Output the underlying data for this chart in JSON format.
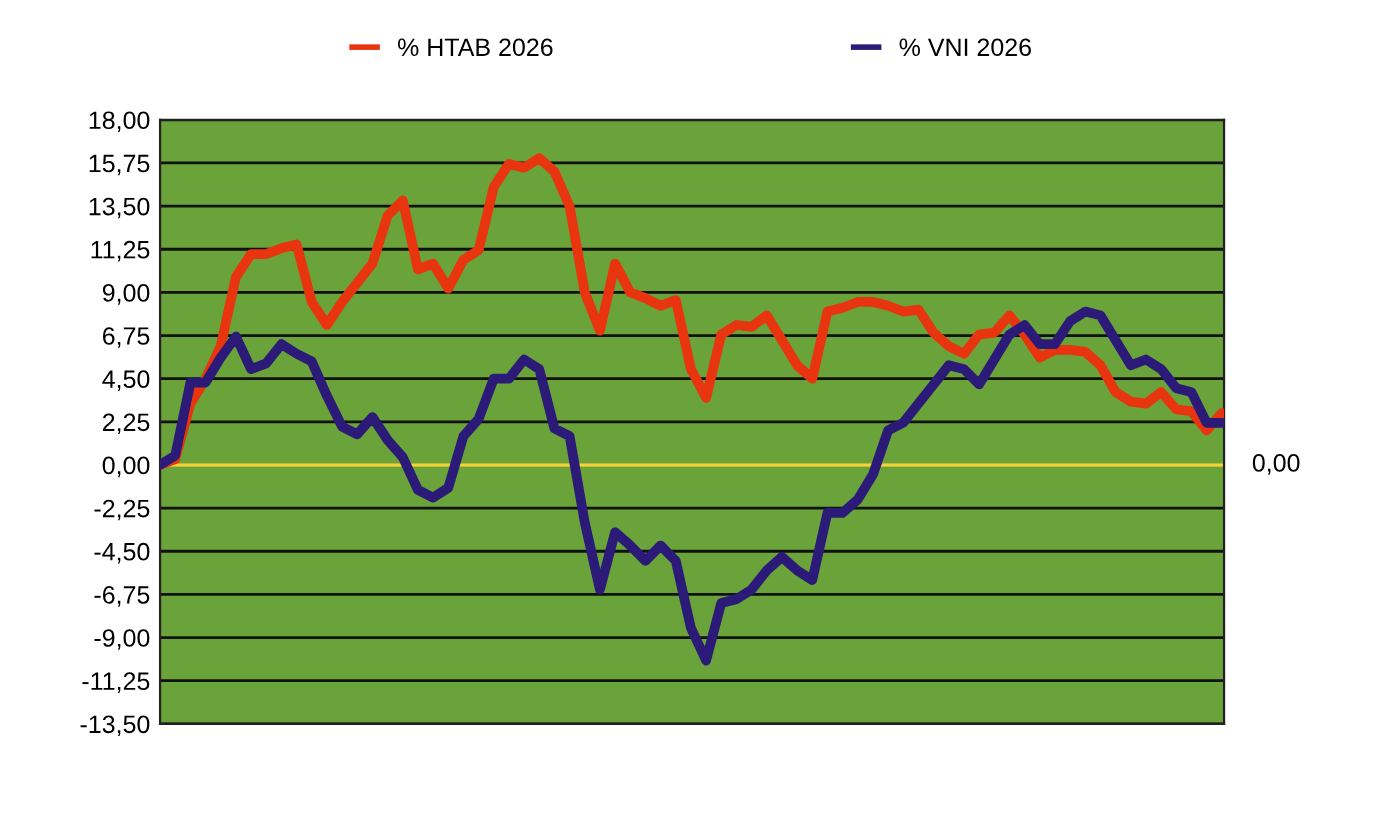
{
  "chart_data": {
    "type": "line",
    "categories": [
      null,
      null,
      null,
      null,
      null,
      null,
      null,
      null,
      null,
      null,
      null,
      null,
      null,
      null,
      null,
      null,
      null,
      null,
      null,
      null,
      null,
      null,
      null,
      null,
      null,
      null,
      null,
      null,
      null,
      null,
      null,
      null,
      null,
      null,
      null,
      null,
      null,
      null,
      null,
      null,
      null,
      null,
      null,
      null,
      null,
      null,
      null,
      null,
      null,
      null,
      null,
      null,
      null,
      null,
      null,
      null,
      null,
      null,
      null,
      null,
      null,
      null,
      null,
      null,
      null,
      null,
      null,
      null,
      null,
      null,
      null
    ],
    "series": [
      {
        "name": "% HTAB 2026",
        "color": "#e8340f",
        "values": [
          0,
          0.3,
          3.2,
          4.5,
          6.2,
          9.8,
          11,
          11,
          11.3,
          11.5,
          8.5,
          7.3,
          8.5,
          9.5,
          10.5,
          13,
          13.8,
          10.2,
          10.5,
          9.2,
          10.7,
          11.2,
          14.5,
          15.7,
          15.5,
          16,
          15.3,
          13.5,
          9,
          7,
          10.5,
          9,
          8.7,
          8.3,
          8.6,
          5,
          3.5,
          6.8,
          7.3,
          7.2,
          7.8,
          6.5,
          5.2,
          4.5,
          8,
          8.2,
          8.5,
          8.5,
          8.3,
          8,
          8.1,
          6.9,
          6.2,
          5.8,
          6.8,
          6.9,
          7.8,
          6.8,
          5.6,
          6,
          6,
          5.9,
          5.2,
          3.8,
          3.3,
          3.2,
          3.8,
          2.9,
          2.8,
          1.8,
          2.7
        ]
      },
      {
        "name": "% VNI 2026",
        "color": "#2b1a78",
        "values": [
          0,
          0.5,
          4.3,
          4.3,
          5.6,
          6.7,
          5,
          5.3,
          6.3,
          5.8,
          5.4,
          3.6,
          2,
          1.6,
          2.5,
          1.3,
          0.4,
          -1.3,
          -1.7,
          -1.2,
          1.5,
          2.4,
          4.5,
          4.5,
          5.5,
          5,
          1.9,
          1.5,
          -3,
          -6.5,
          -3.5,
          -4.2,
          -5,
          -4.2,
          -5,
          -8.5,
          -10.2,
          -7.2,
          -7,
          -6.5,
          -5.5,
          -4.8,
          -5.5,
          -6,
          -2.5,
          -2.5,
          -1.8,
          -0.5,
          1.8,
          2.2,
          3.2,
          4.2,
          5.2,
          5,
          4.2,
          5.5,
          6.8,
          7.3,
          6.3,
          6.3,
          7.5,
          8,
          7.8,
          6.5,
          5.2,
          5.5,
          5,
          4,
          3.8,
          2.2,
          2.2
        ]
      }
    ],
    "ylim": [
      -13.5,
      18
    ],
    "yticks": [
      {
        "value": 18,
        "label": "18,00"
      },
      {
        "value": 15.75,
        "label": "15,75"
      },
      {
        "value": 13.5,
        "label": "13,50"
      },
      {
        "value": 11.25,
        "label": "11,25"
      },
      {
        "value": 9,
        "label": "9,00"
      },
      {
        "value": 6.75,
        "label": "6,75"
      },
      {
        "value": 4.5,
        "label": "4,50"
      },
      {
        "value": 2.25,
        "label": "2,25"
      },
      {
        "value": 0,
        "label": "0,00"
      },
      {
        "value": -2.25,
        "label": "-2,25"
      },
      {
        "value": -4.5,
        "label": "-4,50"
      },
      {
        "value": -6.75,
        "label": "-6,75"
      },
      {
        "value": -9,
        "label": "-9,00"
      },
      {
        "value": -11.25,
        "label": "-11,25"
      },
      {
        "value": -13.5,
        "label": "-13,50"
      }
    ],
    "ref_lines": [
      {
        "axis": "y",
        "value": 0,
        "label": "0,00",
        "color": "#f2d438"
      }
    ],
    "grid": "y",
    "legend": "top",
    "tick_labels": "y",
    "marker": "none",
    "line_style": "solid"
  }
}
